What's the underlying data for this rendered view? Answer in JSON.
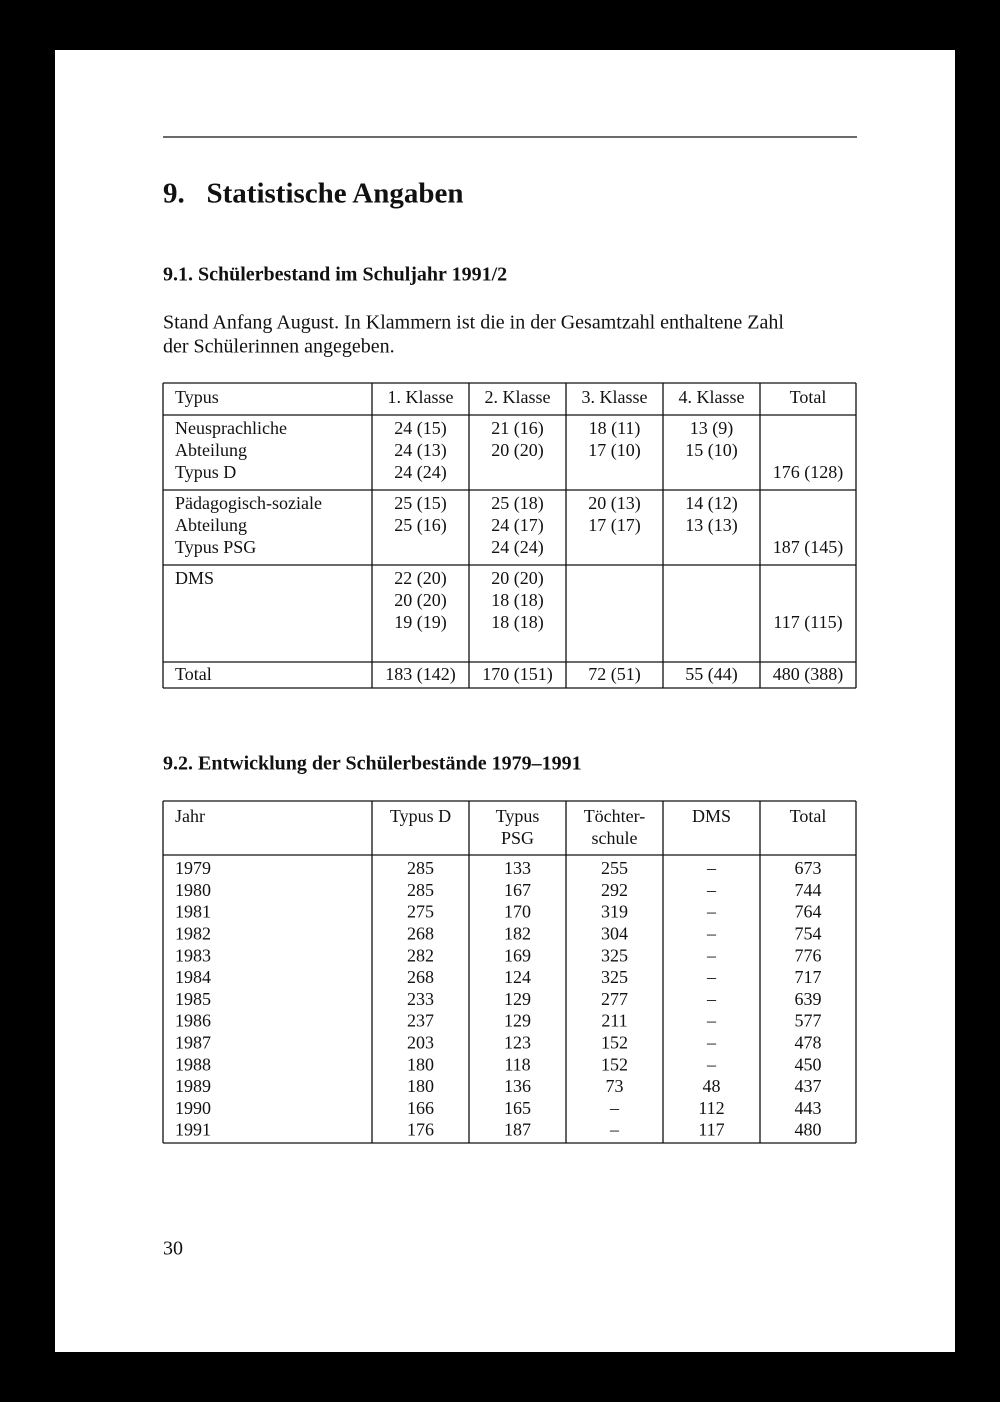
{
  "title": "9.   Statistische Angaben",
  "section1": {
    "heading": "9.1. Schülerbestand im Schuljahr 1991/2",
    "paragraph": [
      "Stand Anfang August. In Klammern ist die in der Gesamtzahl enthaltene Zahl",
      "der Schülerinnen angegeben."
    ],
    "table": {
      "headers": [
        "Typus",
        "1. Klasse",
        "2. Klasse",
        "3. Klasse",
        "4. Klasse",
        "Total"
      ],
      "groups": [
        {
          "typus": [
            "Neusprachliche",
            "Abteilung",
            "Typus D"
          ],
          "cells": [
            [
              "24 (15)",
              "24 (13)",
              "24 (24)"
            ],
            [
              "21 (16)",
              "20 (20)"
            ],
            [
              "18 (11)",
              "17 (10)"
            ],
            [
              "13 (9)",
              "15 (10)"
            ]
          ],
          "total": "176 (128)"
        },
        {
          "typus": [
            "Pädagogisch-soziale",
            "Abteilung",
            "Typus PSG"
          ],
          "cells": [
            [
              "25 (15)",
              "25 (16)"
            ],
            [
              "25 (18)",
              "24 (17)",
              "24 (24)"
            ],
            [
              "20 (13)",
              "17 (17)"
            ],
            [
              "14 (12)",
              "13 (13)"
            ]
          ],
          "total": "187 (145)"
        },
        {
          "typus": [
            "DMS"
          ],
          "cells": [
            [
              "22 (20)",
              "20 (20)",
              "19 (19)"
            ],
            [
              "20 (20)",
              "18 (18)",
              "18 (18)"
            ],
            [],
            []
          ],
          "total": "117 (115)"
        }
      ],
      "total_row": [
        "Total",
        "183 (142)",
        "170 (151)",
        "72 (51)",
        "55 (44)",
        "480 (388)"
      ]
    }
  },
  "section2": {
    "heading": "9.2. Entwicklung der Schülerbestände 1979–1991",
    "table": {
      "headers": [
        [
          "Jahr"
        ],
        [
          "Typus D"
        ],
        [
          "Typus",
          "PSG"
        ],
        [
          "Töchter-",
          "schule"
        ],
        [
          "DMS"
        ],
        [
          "Total"
        ]
      ],
      "rows": [
        [
          "1979",
          "285",
          "133",
          "255",
          "–",
          "673"
        ],
        [
          "1980",
          "285",
          "167",
          "292",
          "–",
          "744"
        ],
        [
          "1981",
          "275",
          "170",
          "319",
          "–",
          "764"
        ],
        [
          "1982",
          "268",
          "182",
          "304",
          "–",
          "754"
        ],
        [
          "1983",
          "282",
          "169",
          "325",
          "–",
          "776"
        ],
        [
          "1984",
          "268",
          "124",
          "325",
          "–",
          "717"
        ],
        [
          "1985",
          "233",
          "129",
          "277",
          "–",
          "639"
        ],
        [
          "1986",
          "237",
          "129",
          "211",
          "–",
          "577"
        ],
        [
          "1987",
          "203",
          "123",
          "152",
          "–",
          "478"
        ],
        [
          "1988",
          "180",
          "118",
          "152",
          "–",
          "450"
        ],
        [
          "1989",
          "180",
          "136",
          "73",
          "48",
          "437"
        ],
        [
          "1990",
          "166",
          "165",
          "–",
          "112",
          "443"
        ],
        [
          "1991",
          "176",
          "187",
          "–",
          "117",
          "480"
        ]
      ]
    }
  },
  "page_number": "30"
}
